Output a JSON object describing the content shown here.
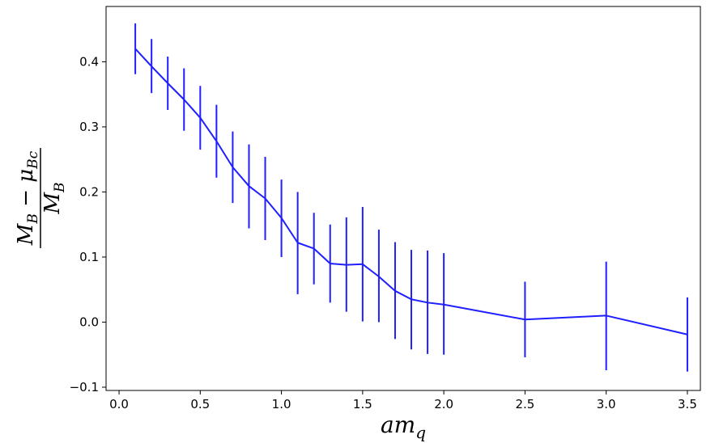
{
  "chart_data": {
    "type": "line",
    "title": "",
    "xlabel": "am_q",
    "ylabel": "(M_B − μ_Bc) / M_B",
    "xlim": [
      -0.08,
      3.58
    ],
    "ylim": [
      -0.105,
      0.485
    ],
    "xticks": [
      0.0,
      0.5,
      1.0,
      1.5,
      2.0,
      2.5,
      3.0,
      3.5
    ],
    "xtick_labels": [
      "0.0",
      "0.5",
      "1.0",
      "1.5",
      "2.0",
      "2.5",
      "3.0",
      "3.5"
    ],
    "yticks": [
      -0.1,
      0.0,
      0.1,
      0.2,
      0.3,
      0.4
    ],
    "ytick_labels": [
      "−0.1",
      "0.0",
      "0.1",
      "0.2",
      "0.3",
      "0.4"
    ],
    "grid": false,
    "color": "#1f1fff",
    "series": [
      {
        "x": [
          0.1,
          0.2,
          0.3,
          0.4,
          0.5,
          0.6,
          0.7,
          0.8,
          0.9,
          1.0,
          1.1,
          1.2,
          1.3,
          1.4,
          1.5,
          1.6,
          1.7,
          1.8,
          1.9,
          2.0,
          2.5,
          3.0,
          3.5
        ],
        "y": [
          0.42,
          0.393,
          0.367,
          0.342,
          0.314,
          0.278,
          0.238,
          0.209,
          0.19,
          0.16,
          0.122,
          0.113,
          0.09,
          0.088,
          0.089,
          0.07,
          0.048,
          0.035,
          0.03,
          0.027,
          0.004,
          0.01,
          -0.019
        ],
        "yerr_low": [
          0.381,
          0.352,
          0.326,
          0.294,
          0.265,
          0.222,
          0.183,
          0.144,
          0.126,
          0.1,
          0.043,
          0.058,
          0.03,
          0.016,
          0.001,
          0.0,
          -0.026,
          -0.042,
          -0.049,
          -0.05,
          -0.054,
          -0.074,
          -0.076
        ],
        "yerr_high": [
          0.459,
          0.435,
          0.408,
          0.39,
          0.363,
          0.334,
          0.293,
          0.273,
          0.254,
          0.219,
          0.2,
          0.168,
          0.15,
          0.161,
          0.177,
          0.142,
          0.123,
          0.111,
          0.11,
          0.106,
          0.062,
          0.093,
          0.038
        ]
      }
    ]
  }
}
